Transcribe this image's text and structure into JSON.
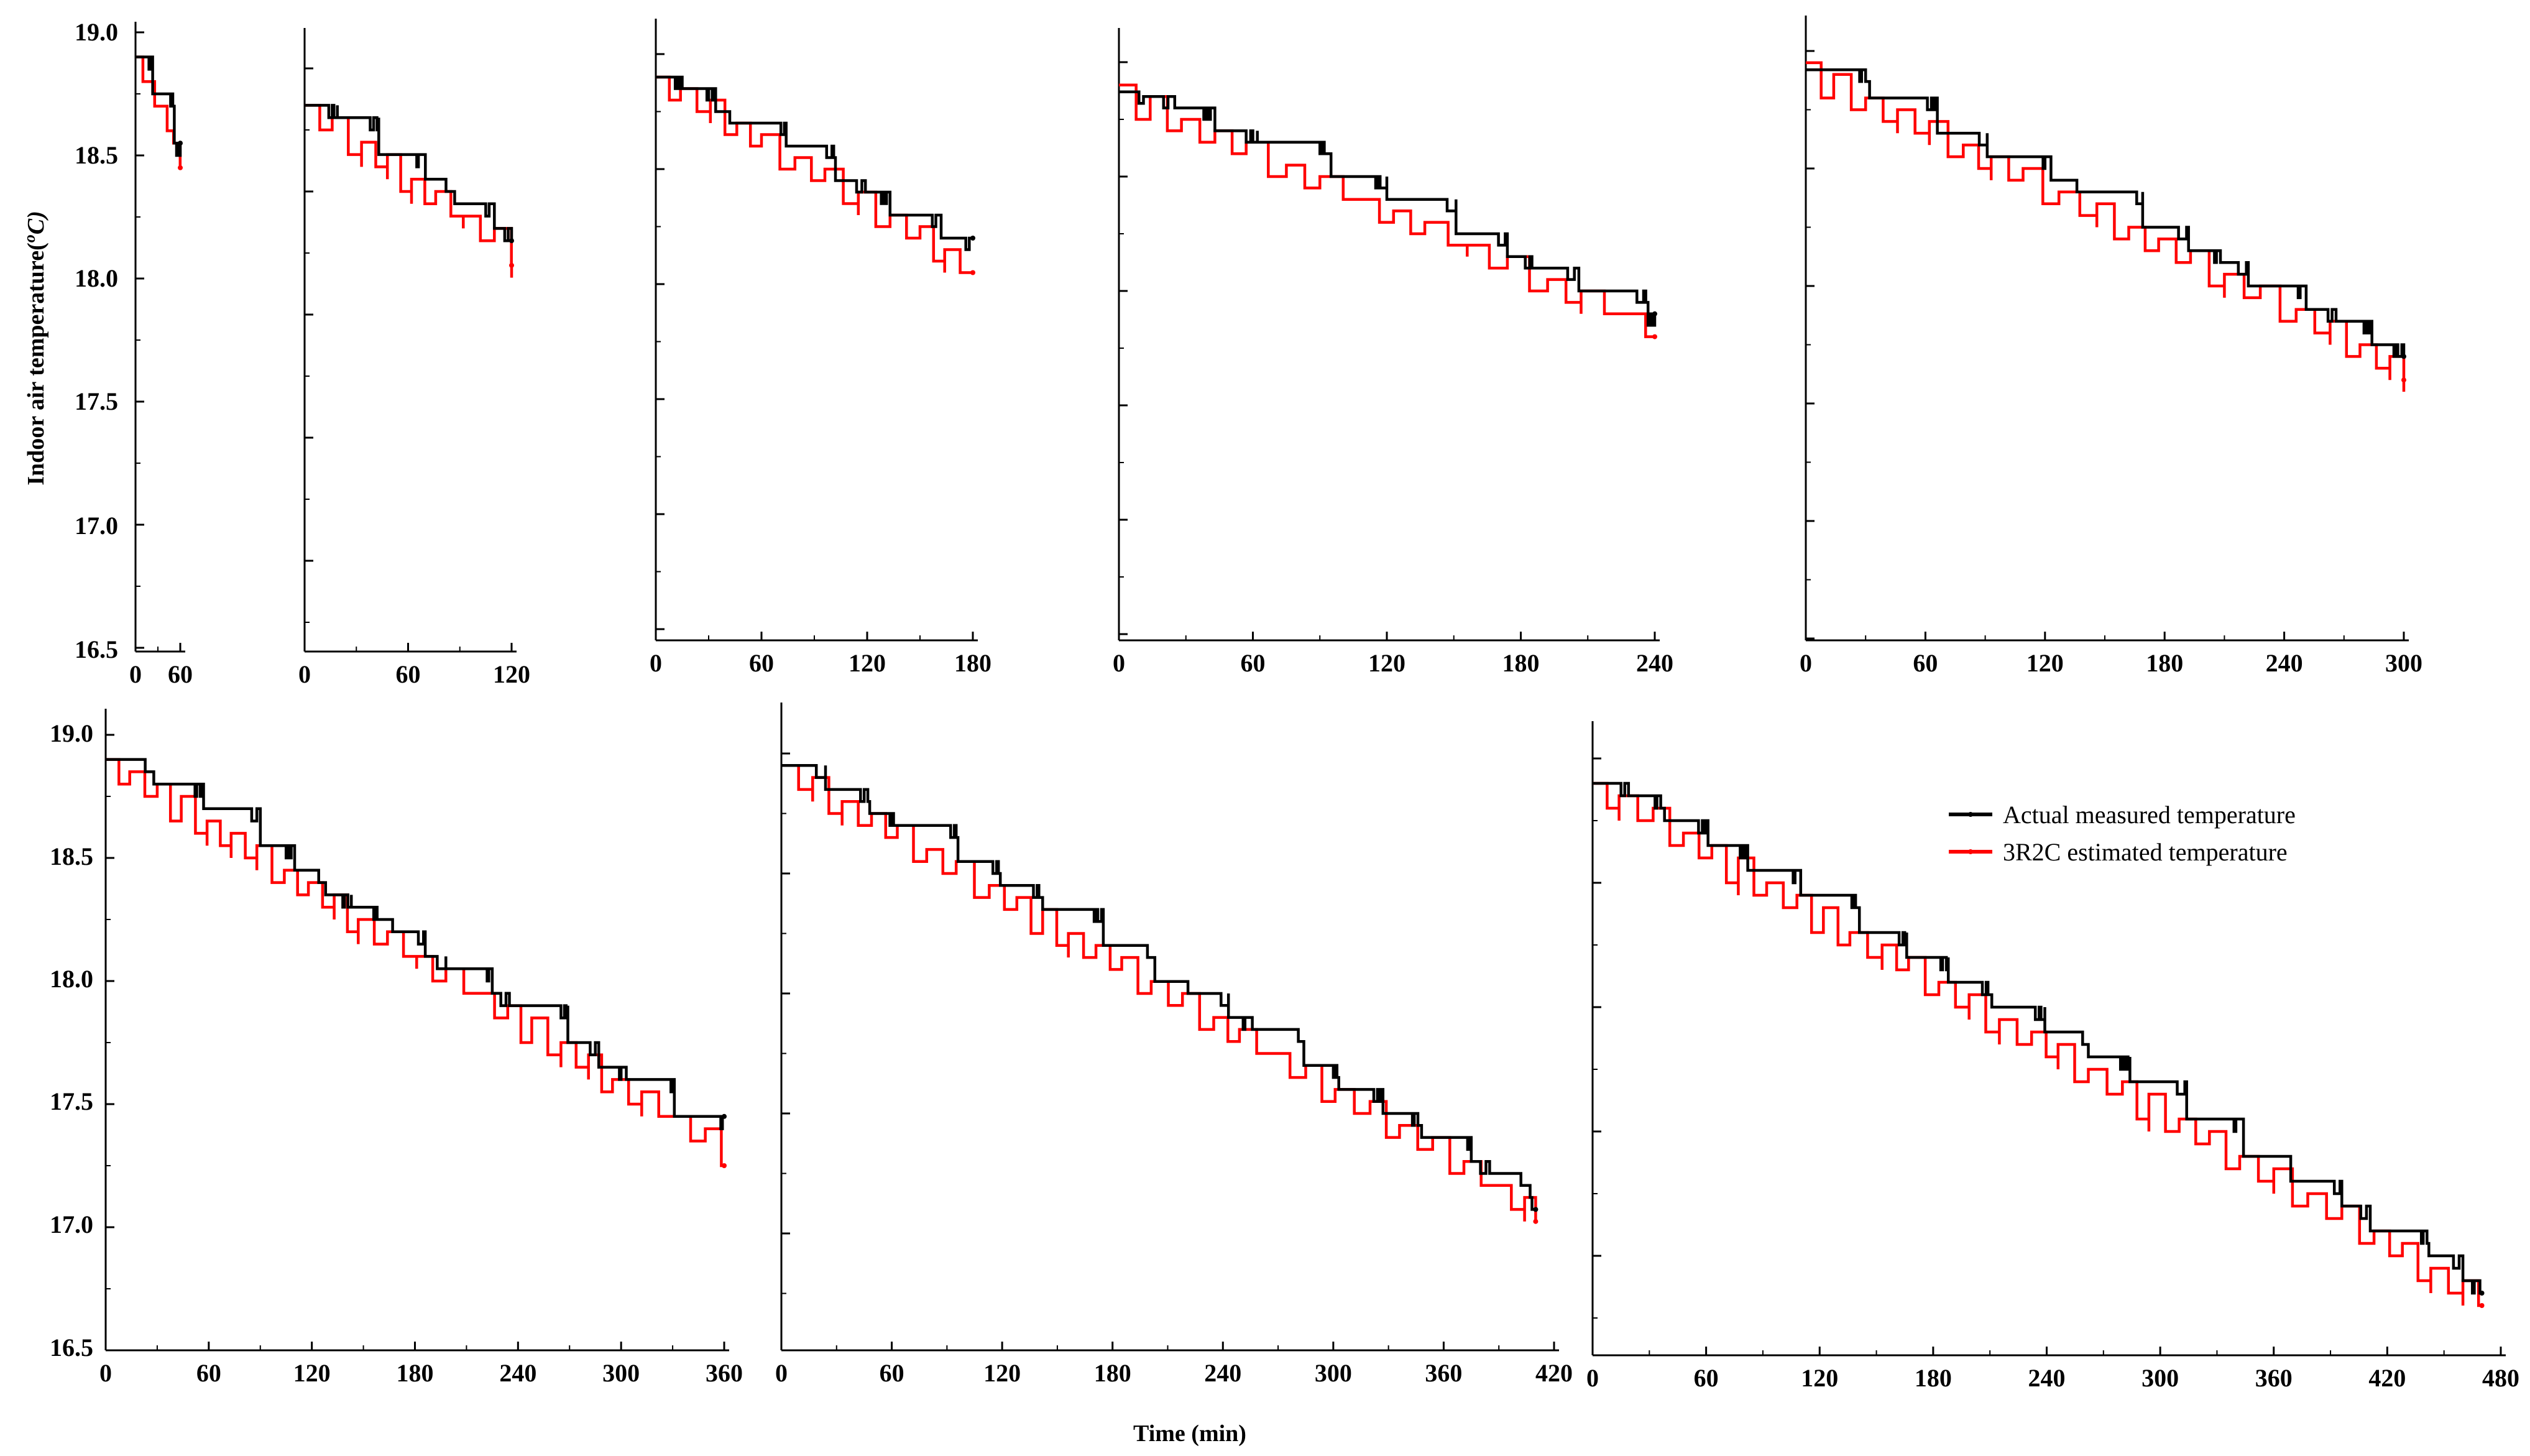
{
  "chart_data": {
    "type": "line",
    "ylabel": "Indoor air temperature(",
    "ylabel_sup": "o",
    "ylabel_unit": "C)",
    "xlabel": "Time (min)",
    "legend": {
      "position": "right",
      "entries": [
        {
          "name": "Actual measured temperature",
          "color": "#000000"
        },
        {
          "name": "3R2C estimated temperature",
          "color": "#ff0000"
        }
      ]
    },
    "ylim": [
      16.5,
      19.0
    ],
    "yticks": [
      "19.0",
      "18.5",
      "18.0",
      "17.5",
      "17.0",
      "16.5"
    ],
    "panels": [
      {
        "xlim": [
          0,
          60
        ],
        "xticks": [
          "0",
          "60"
        ],
        "duration": 60,
        "start": 18.9,
        "slope": 0.0069,
        "seed": 1
      },
      {
        "xlim": [
          0,
          120
        ],
        "xticks": [
          "0",
          "60",
          "120"
        ],
        "duration": 120,
        "start": 18.85,
        "slope": 0.0049,
        "seed": 2
      },
      {
        "xlim": [
          0,
          180
        ],
        "xticks": [
          "0",
          "60",
          "120",
          "180"
        ],
        "duration": 180,
        "start": 18.9,
        "slope": 0.0046,
        "seed": 3
      },
      {
        "xlim": [
          0,
          240
        ],
        "xticks": [
          "0",
          "60",
          "120",
          "180",
          "240"
        ],
        "duration": 240,
        "start": 18.87,
        "slope": 0.0043,
        "seed": 4
      },
      {
        "xlim": [
          0,
          300
        ],
        "xticks": [
          "0",
          "60",
          "120",
          "180",
          "240",
          "300"
        ],
        "duration": 300,
        "start": 18.92,
        "slope": 0.0042,
        "seed": 5
      },
      {
        "xlim": [
          0,
          360
        ],
        "xticks": [
          "0",
          "60",
          "120",
          "180",
          "240",
          "300",
          "360"
        ],
        "duration": 360,
        "start": 18.9,
        "slope": 0.0044,
        "seed": 6
      },
      {
        "xlim": [
          0,
          420
        ],
        "xticks": [
          "0",
          "60",
          "120",
          "180",
          "240",
          "300",
          "360",
          "420"
        ],
        "duration": 410,
        "start": 18.95,
        "slope": 0.0045,
        "seed": 7
      },
      {
        "xlim": [
          0,
          480
        ],
        "xticks": [
          "0",
          "60",
          "120",
          "180",
          "240",
          "300",
          "360",
          "420",
          "480"
        ],
        "duration": 470,
        "start": 18.9,
        "slope": 0.0044,
        "seed": 8
      }
    ]
  }
}
